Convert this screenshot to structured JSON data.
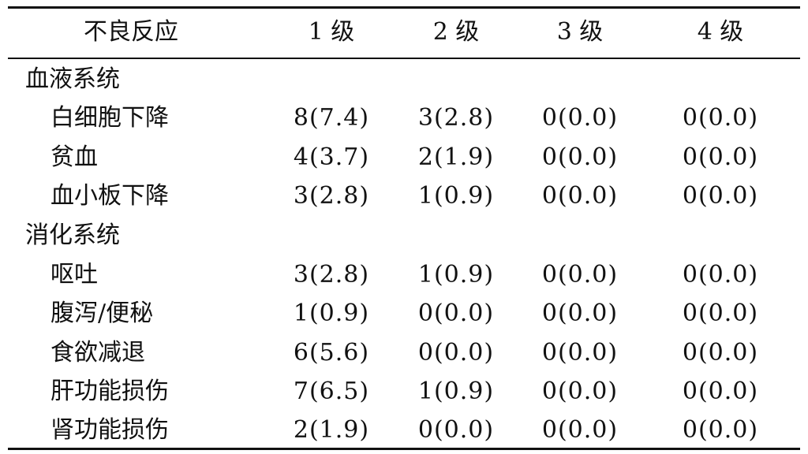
{
  "table": {
    "headers": [
      "不良反应",
      "1 级",
      "2 级",
      "3 级",
      "4 级"
    ],
    "groups": [
      {
        "name": "血液系统",
        "rows": [
          {
            "label": "白细胞下降",
            "values": [
              "8(7.4)",
              "3(2.8)",
              "0(0.0)",
              "0(0.0)"
            ]
          },
          {
            "label": "贫血",
            "values": [
              "4(3.7)",
              "2(1.9)",
              "0(0.0)",
              "0(0.0)"
            ]
          },
          {
            "label": "血小板下降",
            "values": [
              "3(2.8)",
              "1(0.9)",
              "0(0.0)",
              "0(0.0)"
            ]
          }
        ]
      },
      {
        "name": "消化系统",
        "rows": [
          {
            "label": "呕吐",
            "values": [
              "3(2.8)",
              "1(0.9)",
              "0(0.0)",
              "0(0.0)"
            ]
          },
          {
            "label": "腹泻/便秘",
            "values": [
              "1(0.9)",
              "0(0.0)",
              "0(0.0)",
              "0(0.0)"
            ]
          },
          {
            "label": "食欲减退",
            "values": [
              "6(5.6)",
              "0(0.0)",
              "0(0.0)",
              "0(0.0)"
            ]
          },
          {
            "label": "肝功能损伤",
            "values": [
              "7(6.5)",
              "1(0.9)",
              "0(0.0)",
              "0(0.0)"
            ]
          },
          {
            "label": "肾功能损伤",
            "values": [
              "2(1.9)",
              "0(0.0)",
              "0(0.0)",
              "0(0.0)"
            ]
          }
        ]
      }
    ]
  }
}
